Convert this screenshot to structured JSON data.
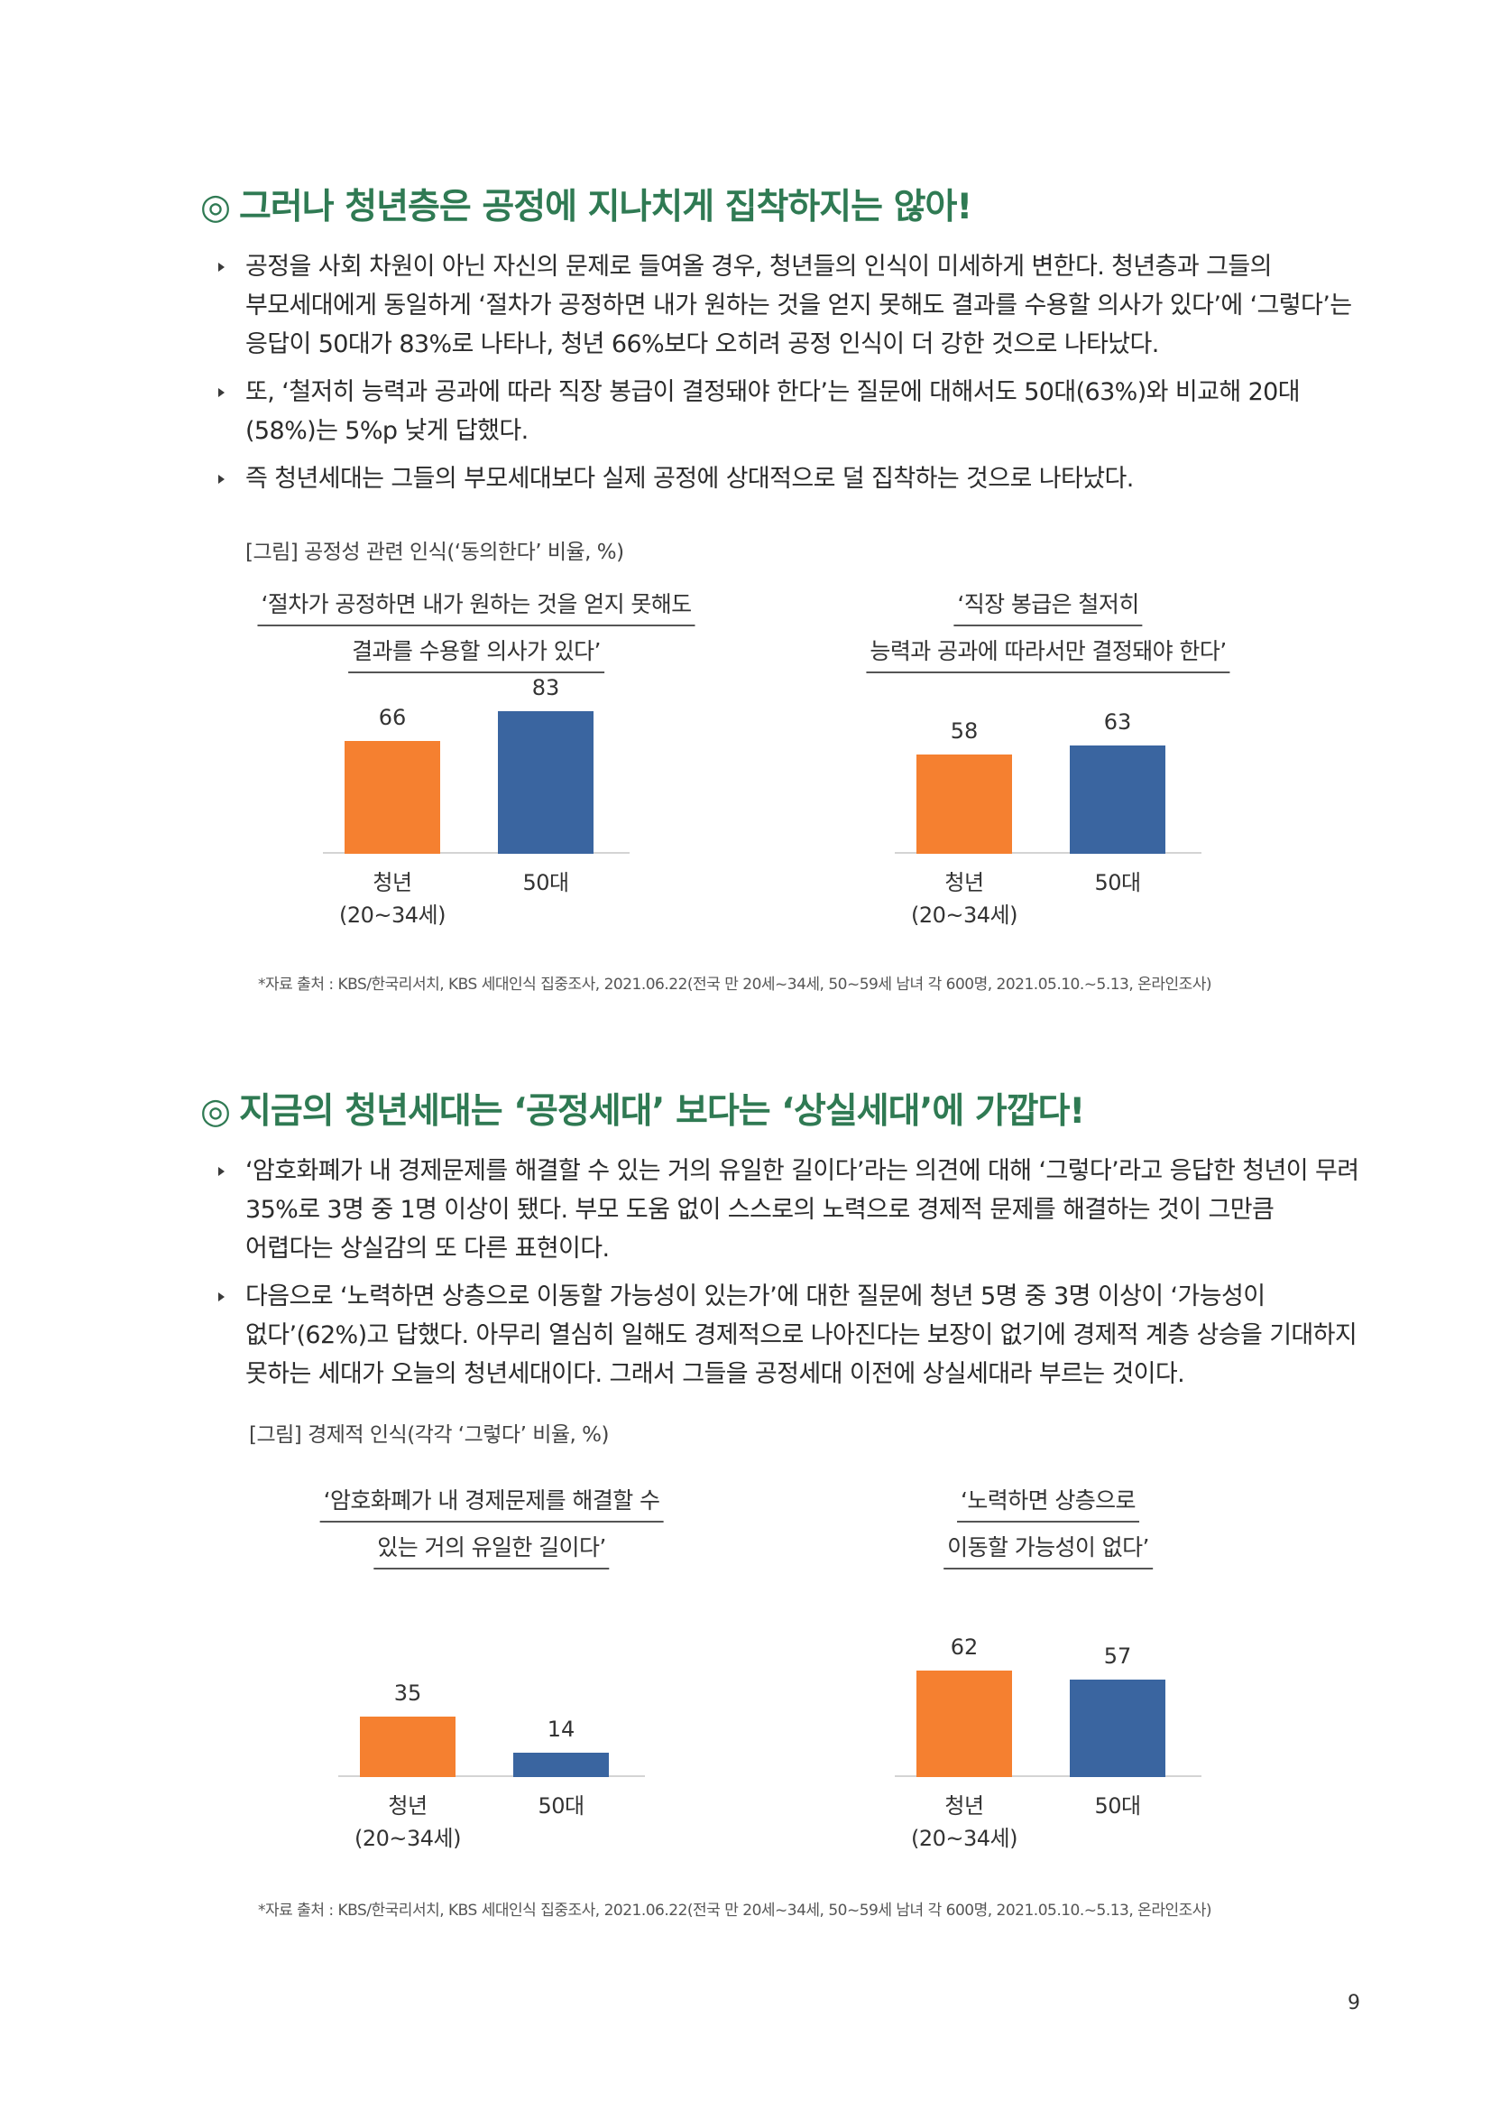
{
  "section1": {
    "mark": "◎",
    "heading": "그러나 청년층은 공정에 지나치게 집착하지는 않아!",
    "bullets": [
      "공정을 사회 차원이 아닌 자신의 문제로 들여올 경우, 청년들의 인식이 미세하게 변한다. 청년층과 그들의 부모세대에게 동일하게 ‘절차가 공정하면 내가 원하는 것을 얻지 못해도 결과를 수용할 의사가 있다’에 ‘그렇다’는 응답이 50대가 83%로 나타나, 청년 66%보다 오히려 공정 인식이 더 강한 것으로 나타났다.",
      "또, ‘철저히 능력과 공과에 따라 직장 봉급이 결정돼야 한다’는 질문에 대해서도 50대(63%)와 비교해 20대(58%)는 5%p 낮게 답했다.",
      "즉 청년세대는 그들의 부모세대보다 실제 공정에 상대적으로 덜 집착하는 것으로 나타났다."
    ],
    "figure_caption": "[그림] 공정성 관련 인식(‘동의한다’ 비율, %)",
    "source": "*자료 출처 : KBS/한국리서치, KBS 세대인식 집중조사, 2021.06.22(전국 만 20세~34세, 50~59세 남녀 각 600명, 2021.05.10.~5.13, 온라인조사)"
  },
  "section2": {
    "mark": "◎",
    "heading": "지금의 청년세대는 ‘공정세대’ 보다는 ‘상실세대’에 가깝다!",
    "bullets": [
      "‘암호화폐가 내 경제문제를 해결할 수 있는 거의 유일한 길이다’라는 의견에 대해 ‘그렇다’라고 응답한 청년이 무려 35%로 3명 중 1명 이상이 됐다. 부모 도움 없이 스스로의 노력으로 경제적 문제를 해결하는 것이 그만큼 어렵다는 상실감의 또 다른 표현이다.",
      "다음으로 ‘노력하면 상층으로 이동할 가능성이 있는가’에 대한 질문에 청년 5명 중 3명 이상이 ‘가능성이 없다’(62%)고 답했다. 아무리 열심히 일해도 경제적으로 나아진다는 보장이 없기에 경제적 계층 상승을 기대하지 못하는 세대가 오늘의 청년세대이다. 그래서 그들을 공정세대 이전에 상실세대라 부르는 것이다."
    ],
    "figure_caption": "[그림] 경제적 인식(각각 ‘그렇다’ 비율, %)",
    "source": "*자료 출처 : KBS/한국리서치, KBS 세대인식 집중조사, 2021.06.22(전국 만 20세~34세, 50~59세 남녀 각 600명, 2021.05.10.~5.13, 온라인조사)"
  },
  "colors": {
    "youth": "#F58030",
    "fifties": "#3A65A0",
    "heading": "#2F7A53"
  },
  "chart_data": [
    {
      "type": "bar",
      "title_lines": [
        "‘절차가 공정하면 내가 원하는 것을 얻지 못해도",
        "결과를 수용할 의사가 있다’"
      ],
      "categories": [
        "청년\n(20~34세)",
        "50대"
      ],
      "values": [
        66,
        83
      ],
      "ylim": [
        0,
        100
      ]
    },
    {
      "type": "bar",
      "title_lines": [
        "‘직장 봉급은 철저히",
        "능력과 공과에 따라서만 결정돼야 한다’"
      ],
      "categories": [
        "청년\n(20~34세)",
        "50대"
      ],
      "values": [
        58,
        63
      ],
      "ylim": [
        0,
        100
      ]
    },
    {
      "type": "bar",
      "title_lines": [
        "‘암호화폐가 내 경제문제를 해결할 수",
        "있는 거의 유일한 길이다’"
      ],
      "categories": [
        "청년\n(20~34세)",
        "50대"
      ],
      "values": [
        35,
        14
      ],
      "ylim": [
        0,
        100
      ]
    },
    {
      "type": "bar",
      "title_lines": [
        "‘노력하면 상층으로",
        "이동할 가능성이 없다’"
      ],
      "categories": [
        "청년\n(20~34세)",
        "50대"
      ],
      "values": [
        62,
        57
      ],
      "ylim": [
        0,
        100
      ]
    }
  ],
  "page_number": "9"
}
